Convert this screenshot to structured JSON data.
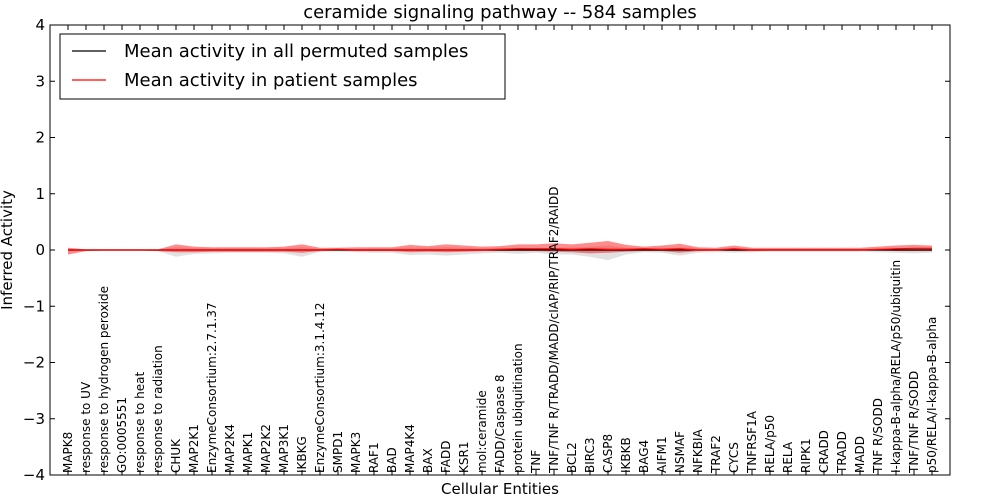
{
  "chart_data": {
    "type": "line",
    "title": "ceramide signaling pathway -- 584 samples",
    "xlabel": "Cellular Entities",
    "ylabel": "Inferred Activity",
    "ylim": [
      -4,
      4
    ],
    "yticks": [
      4,
      3,
      2,
      1,
      0,
      -1,
      -2,
      -3,
      -4
    ],
    "ytick_labels": [
      "4",
      "3",
      "2",
      "1",
      "0",
      "−1",
      "−2",
      "−3",
      "−4"
    ],
    "grid": false,
    "legend_position": "top-left",
    "categories": [
      "MAPK8",
      "response to UV",
      "response to hydrogen peroxide",
      "GO:0005551",
      "response to heat",
      "response to radiation",
      "CHUK",
      "MAP2K1",
      "EnzymeConsortium:2.7.1.37",
      "MAP2K4",
      "MAPK1",
      "MAP2K2",
      "MAP3K1",
      "IKBKG",
      "EnzymeConsortium:3.1.4.12",
      "SMPD1",
      "MAPK3",
      "RAF1",
      "BAD",
      "MAP4K4",
      "BAX",
      "FADD",
      "KSR1",
      "mol:ceramide",
      "FADD/Caspase 8",
      "protein ubiquitination",
      "TNF",
      "TNF/TNF R/TRADD/MADD/cIAP/RIP/TRAF2/RAIDD",
      "BCL2",
      "BIRC3",
      "CASP8",
      "IKBKB",
      "BAG4",
      "AIFM1",
      "NSMAF",
      "NFKBIA",
      "TRAF2",
      "CYCS",
      "TNFRSF1A",
      "RELA/p50",
      "RELA",
      "RIPK1",
      "CRADD",
      "TRADD",
      "MADD",
      "TNF R/SODD",
      "I-kappa-B-alpha/RELA/p50/ubiquitin",
      "TNF/TNF R/SODD",
      "p50/RELA/I-kappa-B-alpha"
    ],
    "series": [
      {
        "name": "Mean activity in all permuted samples",
        "color": "#000000",
        "values": [
          0,
          0,
          0,
          0,
          0,
          0,
          0,
          0,
          0,
          0,
          0,
          0,
          0,
          0,
          0,
          0,
          0,
          0,
          0,
          0,
          0,
          0,
          0,
          0,
          0,
          0,
          0,
          0,
          0,
          0,
          0,
          0,
          0,
          0,
          0,
          0,
          0,
          0,
          0,
          0,
          0,
          0,
          0,
          0,
          0,
          0,
          0,
          0,
          0
        ],
        "band_low": [
          -0.02,
          -0.01,
          -0.01,
          -0.01,
          -0.01,
          -0.02,
          -0.12,
          -0.07,
          -0.06,
          -0.05,
          -0.05,
          -0.05,
          -0.06,
          -0.12,
          -0.03,
          -0.03,
          -0.04,
          -0.05,
          -0.05,
          -0.09,
          -0.08,
          -0.1,
          -0.08,
          -0.06,
          -0.05,
          -0.07,
          -0.05,
          -0.08,
          -0.08,
          -0.12,
          -0.18,
          -0.08,
          -0.04,
          -0.05,
          -0.1,
          -0.05,
          -0.04,
          -0.05,
          -0.04,
          -0.03,
          -0.03,
          -0.03,
          -0.03,
          -0.03,
          -0.03,
          -0.04,
          -0.05,
          -0.06,
          -0.05
        ],
        "band_high": [
          0.02,
          0.01,
          0.01,
          0.01,
          0.01,
          0.01,
          0.05,
          0.03,
          0.03,
          0.03,
          0.03,
          0.03,
          0.03,
          0.05,
          0.02,
          0.02,
          0.02,
          0.03,
          0.03,
          0.04,
          0.04,
          0.05,
          0.04,
          0.03,
          0.03,
          0.04,
          0.03,
          0.04,
          0.04,
          0.06,
          0.08,
          0.04,
          0.02,
          0.03,
          0.05,
          0.03,
          0.02,
          0.03,
          0.02,
          0.02,
          0.02,
          0.02,
          0.02,
          0.02,
          0.02,
          0.02,
          0.03,
          0.03,
          0.03
        ]
      },
      {
        "name": "Mean activity in patient samples",
        "color": "#ff0000",
        "values": [
          0.0,
          0.0,
          0.0,
          0.0,
          0.0,
          0.0,
          0.0,
          0.0,
          0.0,
          0.0,
          0.0,
          0.0,
          0.0,
          0.0,
          0.0,
          0.01,
          0.0,
          0.0,
          0.0,
          0.0,
          0.0,
          0.0,
          0.0,
          0.0,
          0.01,
          0.02,
          0.02,
          0.02,
          0.01,
          0.02,
          0.01,
          0.01,
          0.02,
          0.01,
          0.02,
          0.0,
          0.0,
          0.02,
          0.0,
          0.0,
          0.0,
          0.0,
          0.0,
          0.0,
          0.0,
          0.01,
          0.02,
          0.03,
          0.03
        ],
        "band_low": [
          -0.08,
          -0.02,
          -0.01,
          -0.01,
          -0.01,
          -0.02,
          -0.04,
          -0.04,
          -0.03,
          -0.03,
          -0.03,
          -0.03,
          -0.03,
          -0.05,
          -0.02,
          -0.01,
          -0.02,
          -0.02,
          -0.02,
          -0.04,
          -0.03,
          -0.04,
          -0.03,
          -0.02,
          -0.02,
          -0.02,
          -0.02,
          -0.03,
          -0.04,
          -0.06,
          -0.05,
          -0.03,
          -0.02,
          -0.02,
          -0.05,
          -0.02,
          -0.01,
          -0.02,
          -0.02,
          -0.01,
          -0.01,
          -0.01,
          -0.01,
          -0.01,
          -0.01,
          -0.01,
          -0.02,
          -0.02,
          -0.02
        ],
        "band_high": [
          0.04,
          0.01,
          0.01,
          0.01,
          0.01,
          0.01,
          0.1,
          0.06,
          0.05,
          0.05,
          0.05,
          0.05,
          0.06,
          0.1,
          0.04,
          0.04,
          0.05,
          0.05,
          0.05,
          0.09,
          0.07,
          0.1,
          0.08,
          0.06,
          0.07,
          0.1,
          0.1,
          0.12,
          0.1,
          0.13,
          0.16,
          0.09,
          0.06,
          0.08,
          0.11,
          0.05,
          0.04,
          0.08,
          0.04,
          0.04,
          0.04,
          0.04,
          0.04,
          0.04,
          0.04,
          0.06,
          0.08,
          0.09,
          0.08
        ]
      }
    ]
  }
}
